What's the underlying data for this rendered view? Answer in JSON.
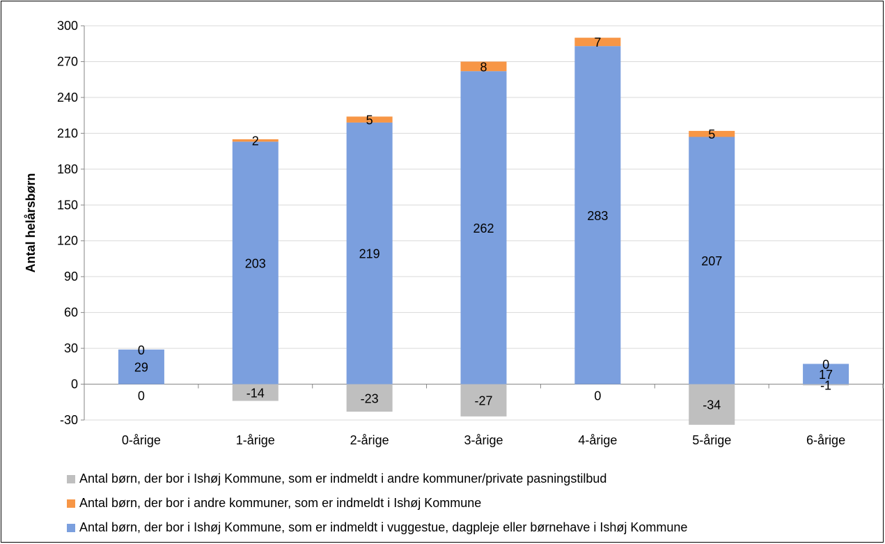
{
  "chart_data": {
    "type": "bar",
    "stacked": true,
    "ylabel": "Antal helårsbørn",
    "xlabel": "",
    "ylim": [
      -30,
      300
    ],
    "yticks": [
      -30,
      0,
      30,
      60,
      90,
      120,
      150,
      180,
      210,
      240,
      270,
      300
    ],
    "categories": [
      "0-årige",
      "1-årige",
      "2-årige",
      "3-årige",
      "4-årige",
      "5-årige",
      "6-årige"
    ],
    "series": [
      {
        "name": "Antal børn, der bor i Ishøj Kommune, som er indmeldt i andre kommuner/private pasningstilbud",
        "color": "#bfbfbf",
        "values": [
          0,
          -14,
          -23,
          -27,
          0,
          -34,
          -1
        ]
      },
      {
        "name": "Antal børn, der bor i andre kommuner, som er indmeldt i Ishøj Kommune",
        "color": "#f79646",
        "values": [
          0,
          2,
          5,
          8,
          7,
          5,
          0
        ]
      },
      {
        "name": "Antal børn, der bor i Ishøj Kommune, som er indmeldt i vuggestue, dagpleje eller børnehave i Ishøj Kommune",
        "color": "#7b9fde",
        "values": [
          29,
          203,
          219,
          262,
          283,
          207,
          17
        ]
      }
    ],
    "grid": "horizontal",
    "legend_position": "bottom"
  }
}
